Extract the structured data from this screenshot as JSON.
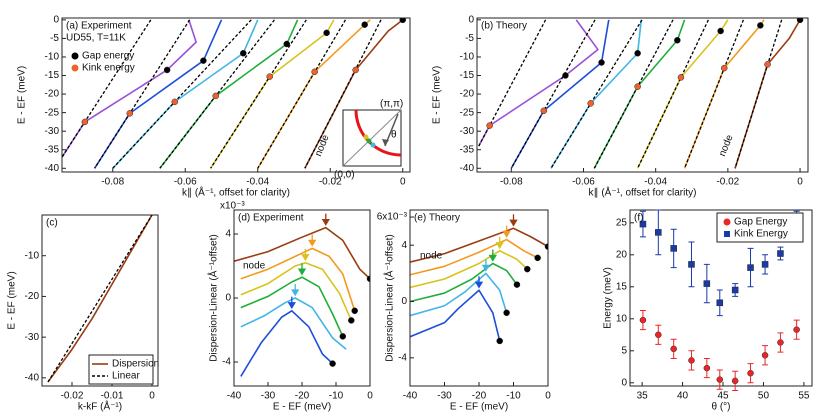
{
  "chart_data": [
    {
      "type": "line",
      "title": "(a) Experiment",
      "subtitle": "UD55, T=11K",
      "xlabel": "k∥ (Å⁻¹, offset for clarity)",
      "ylabel": "E - EF (meV)",
      "xlim": [
        -0.094,
        0.002
      ],
      "ylim": [
        -41,
        0.5
      ],
      "xticks": [
        -0.08,
        -0.06,
        -0.04,
        -0.02,
        0
      ],
      "yticks": [
        0,
        -5,
        -10,
        -15,
        -20,
        -25,
        -30,
        -35,
        -40
      ],
      "legend": "upper left",
      "annotations": [
        "node"
      ],
      "inset_labels": [
        "(π,π)",
        "(0,0)",
        "θ"
      ],
      "series": [
        {
          "color": "#9a3b12",
          "x": [
            0,
            -0.004,
            -0.013,
            -0.027
          ],
          "values": [
            0,
            -3,
            -13.5,
            -40
          ]
        },
        {
          "color": "#f39a1e",
          "x": [
            -0.009,
            -0.0105,
            -0.0243,
            -0.04
          ],
          "values": [
            0,
            -1.3,
            -14,
            -40
          ]
        },
        {
          "color": "#d8c31c",
          "x": [
            -0.019,
            -0.021,
            -0.0367,
            -0.053
          ],
          "values": [
            0,
            -3.5,
            -15.3,
            -40
          ]
        },
        {
          "color": "#1fae3a",
          "x": [
            -0.029,
            -0.032,
            -0.0516,
            -0.067
          ],
          "values": [
            0,
            -6.5,
            -20.5,
            -40
          ]
        },
        {
          "color": "#41b6e6",
          "x": [
            -0.04,
            -0.044,
            -0.0629,
            -0.08
          ],
          "values": [
            0,
            -9,
            -22.1,
            -40
          ]
        },
        {
          "color": "#1c4ed8",
          "x": [
            -0.05,
            -0.055,
            -0.0753,
            -0.085
          ],
          "values": [
            0,
            -11,
            -25.2,
            -40
          ]
        },
        {
          "color": "#9a4fd8",
          "x": [
            -0.059,
            -0.057,
            -0.065,
            -0.0877,
            -0.094
          ],
          "values": [
            0,
            -6,
            -13.5,
            -27.5,
            -37
          ]
        },
        {
          "color": "#000000",
          "style": "dashed",
          "x": [
            -0.006,
            -0.027
          ],
          "values": [
            0,
            -40
          ]
        },
        {
          "color": "#000000",
          "style": "dashed",
          "x": [
            -0.0158,
            -0.04
          ],
          "values": [
            0,
            -40
          ]
        },
        {
          "color": "#000000",
          "style": "dashed",
          "x": [
            -0.0266,
            -0.053
          ],
          "values": [
            0,
            -40
          ]
        },
        {
          "color": "#000000",
          "style": "dashed",
          "x": [
            -0.0354,
            -0.067
          ],
          "values": [
            0,
            -40
          ]
        },
        {
          "color": "#000000",
          "style": "dashed",
          "x": [
            -0.0418,
            -0.08
          ],
          "values": [
            0,
            -40
          ]
        },
        {
          "color": "#000000",
          "style": "dashed",
          "x": [
            -0.0588,
            -0.085
          ],
          "values": [
            0,
            -40
          ]
        },
        {
          "color": "#000000",
          "style": "dashed",
          "x": [
            -0.0695,
            -0.094
          ],
          "values": [
            0,
            -37
          ]
        },
        {
          "name": "Gap energy",
          "color": "#000000",
          "marker": "circle",
          "x": [
            0,
            -0.0105,
            -0.021,
            -0.032,
            -0.044,
            -0.055,
            -0.065
          ],
          "values": [
            0,
            -1.3,
            -3.5,
            -6.5,
            -9,
            -11,
            -13.5
          ]
        },
        {
          "name": "Kink energy",
          "color": "#f0622a",
          "marker": "circle",
          "x": [
            -0.013,
            -0.0243,
            -0.0367,
            -0.0516,
            -0.0629,
            -0.0753,
            -0.0877
          ],
          "values": [
            -13.5,
            -14,
            -15.3,
            -20.5,
            -22.1,
            -25.2,
            -27.5
          ]
        }
      ]
    },
    {
      "type": "line",
      "title": "(b) Theory",
      "xlabel": "k∥ (Å⁻¹, offset for clarity)",
      "ylabel": "E - EF (meV)",
      "xlim": [
        -0.0895,
        0.0022
      ],
      "ylim": [
        -41,
        0.5
      ],
      "xticks": [
        -0.08,
        -0.06,
        -0.04,
        -0.02,
        0
      ],
      "yticks": [
        0,
        -5,
        -10,
        -15,
        -20,
        -25,
        -30,
        -35,
        -40
      ],
      "annotations": [
        "node"
      ],
      "series": [
        {
          "color": "#9a3b12",
          "x": [
            0,
            -0.003,
            -0.009,
            -0.018
          ],
          "values": [
            0,
            -5,
            -12,
            -40
          ]
        },
        {
          "color": "#f39a1e",
          "x": [
            -0.01,
            -0.011,
            -0.021,
            -0.032
          ],
          "values": [
            0,
            -1.5,
            -13,
            -40
          ]
        },
        {
          "color": "#d8c31c",
          "x": [
            -0.02,
            -0.022,
            -0.033,
            -0.045
          ],
          "values": [
            0,
            -3,
            -15.5,
            -40
          ]
        },
        {
          "color": "#1fae3a",
          "x": [
            -0.032,
            -0.034,
            -0.045,
            -0.057
          ],
          "values": [
            0,
            -5.5,
            -18,
            -40
          ]
        },
        {
          "color": "#41b6e6",
          "x": [
            -0.044,
            -0.045,
            -0.058,
            -0.069
          ],
          "values": [
            0,
            -9,
            -22.5,
            -40
          ]
        },
        {
          "color": "#1c4ed8",
          "x": [
            -0.053,
            -0.055,
            -0.071,
            -0.08
          ],
          "values": [
            0,
            -11.5,
            -24.5,
            -40
          ]
        },
        {
          "color": "#9a4fd8",
          "x": [
            -0.062,
            -0.056,
            -0.065,
            -0.086,
            -0.089
          ],
          "values": [
            0,
            -8,
            -15,
            -28.5,
            -34
          ]
        },
        {
          "color": "#000000",
          "style": "dashed",
          "x": [
            -0.0051,
            -0.018
          ],
          "values": [
            0,
            -40
          ]
        },
        {
          "color": "#000000",
          "style": "dashed",
          "x": [
            -0.0157,
            -0.032
          ],
          "values": [
            0,
            -40
          ]
        },
        {
          "color": "#000000",
          "style": "dashed",
          "x": [
            -0.0254,
            -0.045
          ],
          "values": [
            0,
            -40
          ]
        },
        {
          "color": "#000000",
          "style": "dashed",
          "x": [
            -0.0352,
            -0.057
          ],
          "values": [
            0,
            -40
          ]
        },
        {
          "color": "#000000",
          "style": "dashed",
          "x": [
            -0.0438,
            -0.069
          ],
          "values": [
            0,
            -40
          ]
        },
        {
          "color": "#000000",
          "style": "dashed",
          "x": [
            -0.0568,
            -0.08
          ],
          "values": [
            0,
            -40
          ]
        },
        {
          "color": "#000000",
          "style": "dashed",
          "x": [
            -0.0705,
            -0.089
          ],
          "values": [
            0,
            -34
          ]
        },
        {
          "color": "#000000",
          "marker": "circle",
          "x": [
            0,
            -0.011,
            -0.022,
            -0.034,
            -0.045,
            -0.055,
            -0.065
          ],
          "values": [
            0,
            -1.5,
            -3,
            -5.5,
            -9,
            -11.5,
            -15
          ]
        },
        {
          "color": "#f0622a",
          "marker": "circle",
          "x": [
            -0.009,
            -0.021,
            -0.033,
            -0.045,
            -0.058,
            -0.071,
            -0.086
          ],
          "values": [
            -12,
            -13,
            -15.5,
            -18,
            -22.5,
            -24.5,
            -28.5
          ]
        }
      ]
    },
    {
      "type": "line",
      "title": "(c)",
      "xlabel": "k-kF (Å⁻¹)",
      "ylabel": "E - EF (meV)",
      "xlim": [
        -0.0275,
        0.0015
      ],
      "ylim": [
        -42,
        0
      ],
      "xticks": [
        -0.02,
        -0.01,
        0
      ],
      "yticks": [
        -10,
        -20,
        -30,
        -40
      ],
      "legend": "lower right",
      "series": [
        {
          "name": "Dispersion",
          "color": "#9a3b12",
          "x": [
            -0.026,
            -0.02,
            -0.015,
            -0.01,
            -0.005,
            0
          ],
          "values": [
            -41,
            -33,
            -25.5,
            -17,
            -8.5,
            0
          ]
        },
        {
          "name": "Linear",
          "color": "#000000",
          "style": "dashed",
          "x": [
            -0.026,
            0
          ],
          "values": [
            -41,
            0
          ]
        }
      ]
    },
    {
      "type": "line",
      "title": "(d) Experiment",
      "xlabel": "E - EF (meV)",
      "ylabel": "Dispersion-Linear (Å⁻¹offset)",
      "y_multiplier": "x10⁻³",
      "xlim": [
        -40,
        0
      ],
      "ylim": [
        -5.5,
        5.5
      ],
      "xticks": [
        -40,
        -30,
        -20,
        -10,
        0
      ],
      "yticks": [
        -4,
        0,
        4
      ],
      "annotations": [
        "node"
      ],
      "series": [
        {
          "color": "#9a3b12",
          "arrow_x": -13,
          "x": [
            -40,
            -30,
            -20,
            -13,
            -8,
            -3,
            0
          ],
          "values": [
            2.3,
            2.9,
            3.8,
            4.4,
            3.6,
            1.8,
            1.2
          ]
        },
        {
          "color": "#f39a1e",
          "arrow_x": -17,
          "x": [
            -38,
            -30,
            -20,
            -17,
            -12,
            -8,
            -4.5
          ],
          "values": [
            1.2,
            1.8,
            2.8,
            3.1,
            2.6,
            1.5,
            -0.8
          ]
        },
        {
          "color": "#d8c31c",
          "arrow_x": -19,
          "x": [
            -38,
            -30,
            -22,
            -19,
            -14,
            -9,
            -5.5
          ],
          "values": [
            0.2,
            0.9,
            2,
            2.2,
            1.8,
            0.3,
            -1.4
          ]
        },
        {
          "color": "#1fae3a",
          "arrow_x": -20,
          "x": [
            -38,
            -30,
            -23,
            -20,
            -15,
            -11,
            -8
          ],
          "values": [
            -0.6,
            0.1,
            1,
            1.3,
            0.7,
            -1,
            -2.4
          ]
        },
        {
          "color": "#41b6e6",
          "arrow_x": -22,
          "x": [
            -38,
            -31,
            -25,
            -22,
            -17,
            -11,
            -7
          ],
          "values": [
            -1.8,
            -1.1,
            -0.3,
            0,
            -0.6,
            -2.5,
            -3.2
          ]
        },
        {
          "color": "#1c4ed8",
          "arrow_x": -23,
          "x": [
            -38,
            -32,
            -26,
            -23,
            -18,
            -14,
            -11
          ],
          "values": [
            -4.9,
            -2.8,
            -1.2,
            -0.8,
            -1.8,
            -3.5,
            -4.1
          ]
        },
        {
          "color": "#000000",
          "marker": "circle",
          "x": [
            0,
            -4.5,
            -5.5,
            -8,
            -11
          ],
          "values": [
            1.2,
            -0.8,
            -1.4,
            -2.4,
            -4.1
          ]
        }
      ]
    },
    {
      "type": "line",
      "title": "(e) Theory",
      "xlabel": "E - EF (meV)",
      "ylabel": "Dispersion-Linear (Å⁻¹offset)",
      "xlim": [
        -40,
        0
      ],
      "ylim": [
        -6,
        6.5
      ],
      "xticks": [
        -40,
        -30,
        -20,
        -10,
        0
      ],
      "yticks": [
        -4,
        0,
        4,
        {
          "value": 6,
          "label": "6x10⁻³"
        }
      ],
      "annotations": [
        "node"
      ],
      "series": [
        {
          "color": "#9a3b12",
          "arrow_x": -10,
          "x": [
            -40,
            -30,
            -20,
            -10,
            -5,
            0
          ],
          "values": [
            2.8,
            3.4,
            4.3,
            5.2,
            4.6,
            3.9
          ]
        },
        {
          "color": "#f39a1e",
          "arrow_x": -12,
          "x": [
            -40,
            -30,
            -20,
            -12,
            -7,
            -3
          ],
          "values": [
            1.9,
            2.5,
            3.5,
            4.4,
            3.6,
            3.1
          ]
        },
        {
          "color": "#d8c31c",
          "arrow_x": -14,
          "x": [
            -40,
            -30,
            -20,
            -14,
            -9,
            -6
          ],
          "values": [
            1,
            1.6,
            2.7,
            3.6,
            3,
            2.3
          ]
        },
        {
          "color": "#1fae3a",
          "arrow_x": -16,
          "x": [
            -40,
            -30,
            -22,
            -16,
            -12,
            -9
          ],
          "values": [
            0,
            0.6,
            1.6,
            2.7,
            2.2,
            1.2
          ]
        },
        {
          "color": "#41b6e6",
          "arrow_x": -18,
          "x": [
            -40,
            -30,
            -24,
            -18,
            -14,
            -12
          ],
          "values": [
            -1,
            -0.3,
            0.7,
            2,
            0.8,
            -0.8
          ]
        },
        {
          "color": "#1c4ed8",
          "arrow_x": -20,
          "x": [
            -40,
            -30,
            -26,
            -20,
            -16,
            -14
          ],
          "values": [
            -2.5,
            -1.5,
            -0.5,
            0.8,
            -0.8,
            -2.8
          ]
        },
        {
          "color": "#000000",
          "marker": "circle",
          "x": [
            0,
            -3,
            -6,
            -9,
            -12,
            -14
          ],
          "values": [
            3.9,
            3.1,
            2.3,
            1.2,
            -0.8,
            -2.8
          ]
        }
      ]
    },
    {
      "type": "scatter",
      "title": "(f)",
      "xlabel": "θ (°)",
      "ylabel": "Energy (meV)",
      "xlim": [
        33.5,
        56
      ],
      "ylim": [
        -0.5,
        27
      ],
      "xticks": [
        35,
        40,
        45,
        50,
        55
      ],
      "yticks": [
        0,
        5,
        10,
        15,
        20,
        25
      ],
      "legend": "upper right",
      "series": [
        {
          "name": "Gap Energy",
          "color": "#e8272a",
          "marker": "circle",
          "x": [
            35.1,
            37,
            38.9,
            41.1,
            43,
            44.6,
            46.5,
            48.4,
            50.2,
            52.1,
            54.1
          ],
          "values": [
            9.8,
            7.5,
            5.3,
            3.5,
            2.3,
            0.5,
            0.3,
            1.5,
            4.3,
            6.3,
            8.3
          ],
          "errors": [
            1.5,
            1.5,
            1.5,
            1.5,
            1.5,
            1.5,
            1.5,
            1.5,
            1.5,
            1.5,
            1.5
          ]
        },
        {
          "name": "Kink Energy",
          "color": "#1a3aa8",
          "marker": "square",
          "x": [
            35.1,
            37,
            38.9,
            41.1,
            43,
            44.6,
            46.5,
            48.4,
            50.2,
            52.1,
            54.1
          ],
          "values": [
            24.8,
            23.5,
            21,
            18.5,
            15.5,
            12.5,
            14.5,
            18,
            18.5,
            20.2,
            24.8
          ],
          "errors": [
            2,
            3.5,
            3,
            3.5,
            3,
            2,
            1,
            3,
            1.5,
            1,
            2
          ]
        }
      ]
    }
  ]
}
